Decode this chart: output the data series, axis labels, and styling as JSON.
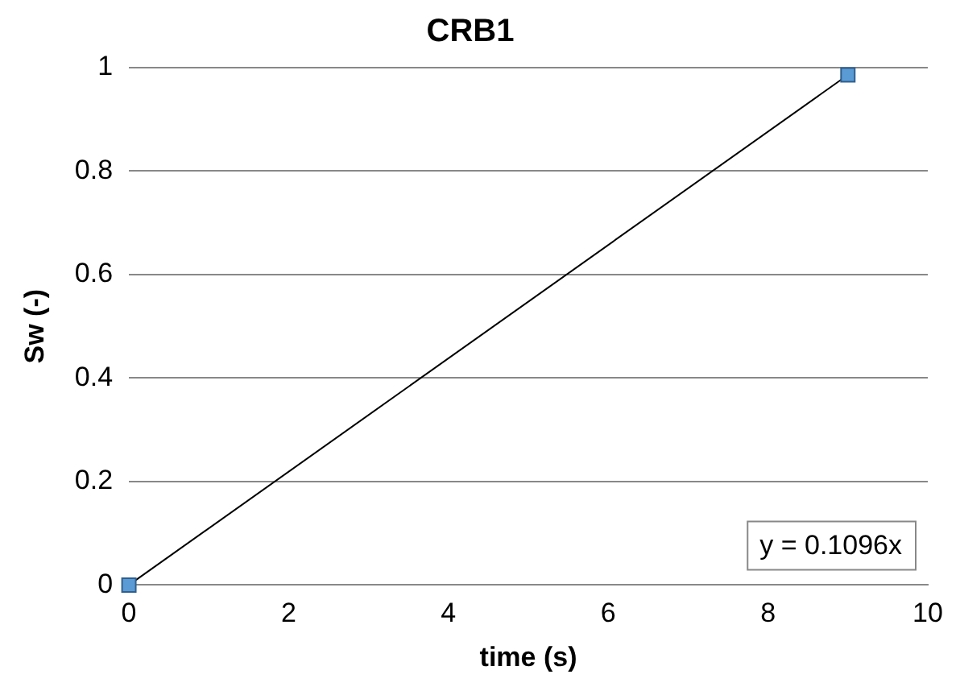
{
  "chart_data": {
    "type": "scatter",
    "title": "CRB1",
    "xlabel": "time (s)",
    "ylabel": "Sw (-)",
    "xlim": [
      0,
      10
    ],
    "xticks": [
      0,
      2,
      4,
      6,
      8,
      10
    ],
    "ylim": [
      0,
      1
    ],
    "yticks": [
      0,
      0.2,
      0.4,
      0.6,
      0.8,
      1
    ],
    "grid": "y",
    "legend": false,
    "marker": "square",
    "x": [
      0,
      9
    ],
    "series": [
      {
        "color": "#5b9bd5",
        "values": [
          0,
          0.986
        ]
      },
      {
        "type": "line",
        "color": "#000000",
        "marker": "none",
        "values": [
          0,
          0.986
        ]
      }
    ],
    "annotations": [
      "y = 0.1096x"
    ]
  }
}
